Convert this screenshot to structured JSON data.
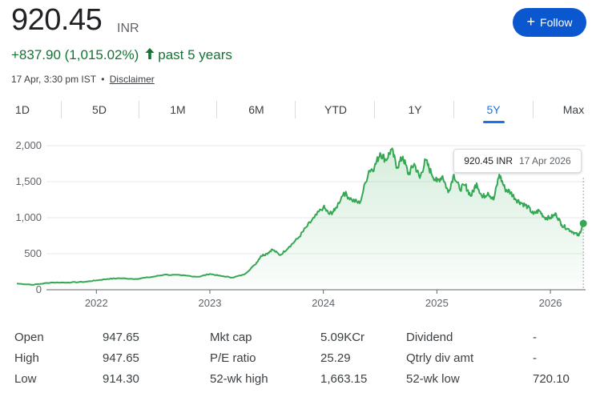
{
  "header": {
    "price": "920.45",
    "currency": "INR",
    "change": "+837.90 (1,015.02%)",
    "period": "past 5 years",
    "timestamp": "17 Apr, 3:30 pm IST",
    "separator": "•",
    "disclaimer": "Disclaimer",
    "follow_label": "Follow",
    "follow_icon": "plus-icon",
    "trend_icon": "arrow-up-icon"
  },
  "tabs": [
    "1D",
    "5D",
    "1M",
    "6M",
    "YTD",
    "1Y",
    "5Y",
    "Max"
  ],
  "active_tab": "5Y",
  "tooltip": {
    "value": "920.45 INR",
    "date": "17 Apr 2026"
  },
  "colors": {
    "line": "#34a853",
    "positive": "#137333",
    "accent": "#1a73e8",
    "button": "#0b57d0"
  },
  "chart_data": {
    "type": "area",
    "title": "",
    "xlabel": "",
    "ylabel": "",
    "ylim": [
      0,
      2000
    ],
    "y_ticks": [
      "0",
      "500",
      "1,000",
      "1,500",
      "2,000"
    ],
    "x_ticks": [
      "2022",
      "2023",
      "2024",
      "2025",
      "2026"
    ],
    "grid": true,
    "x_range": [
      "2021-04",
      "2026-04"
    ],
    "series": [
      {
        "x": [
          2021.3,
          2021.45,
          2021.6,
          2021.75,
          2021.9,
          2022.0,
          2022.1,
          2022.2,
          2022.35,
          2022.5,
          2022.6,
          2022.75,
          2022.9,
          2023.0,
          2023.1,
          2023.2,
          2023.3,
          2023.4,
          2023.45,
          2023.5,
          2023.55,
          2023.62,
          2023.7,
          2023.78,
          2023.85,
          2023.92,
          2024.0,
          2024.05,
          2024.1,
          2024.18,
          2024.25,
          2024.32,
          2024.4,
          2024.45,
          2024.5,
          2024.55,
          2024.6,
          2024.65,
          2024.7,
          2024.75,
          2024.8,
          2024.85,
          2024.9,
          2024.95,
          2025.0,
          2025.05,
          2025.1,
          2025.15,
          2025.2,
          2025.25,
          2025.3,
          2025.35,
          2025.4,
          2025.45,
          2025.5,
          2025.55,
          2025.6,
          2025.65,
          2025.7,
          2025.75,
          2025.8,
          2025.85,
          2025.9,
          2025.95,
          2026.0,
          2026.05,
          2026.1,
          2026.15,
          2026.2,
          2026.25,
          2026.29
        ],
        "y": [
          85,
          70,
          100,
          100,
          110,
          130,
          150,
          160,
          150,
          180,
          210,
          200,
          180,
          220,
          190,
          170,
          210,
          350,
          470,
          500,
          560,
          480,
          600,
          720,
          870,
          1000,
          1150,
          1050,
          1100,
          1350,
          1250,
          1200,
          1650,
          1700,
          1900,
          1800,
          1950,
          1700,
          1850,
          1600,
          1750,
          1550,
          1800,
          1620,
          1500,
          1580,
          1350,
          1600,
          1400,
          1450,
          1300,
          1480,
          1280,
          1350,
          1250,
          1600,
          1400,
          1350,
          1250,
          1200,
          1150,
          1050,
          1100,
          1000,
          1000,
          1050,
          900,
          850,
          800,
          750,
          920
        ]
      }
    ],
    "current_point": {
      "x": 2026.29,
      "y": 920.45
    }
  },
  "stats": {
    "rows": [
      {
        "l1": "Open",
        "v1": "947.65",
        "l2": "Mkt cap",
        "v2": "5.09KCr",
        "l3": "Dividend",
        "v3": "-"
      },
      {
        "l1": "High",
        "v1": "947.65",
        "l2": "P/E ratio",
        "v2": "25.29",
        "l3": "Qtrly div amt",
        "v3": "-"
      },
      {
        "l1": "Low",
        "v1": "914.30",
        "l2": "52-wk high",
        "v2": "1,663.15",
        "l3": "52-wk low",
        "v3": "720.10"
      }
    ]
  }
}
